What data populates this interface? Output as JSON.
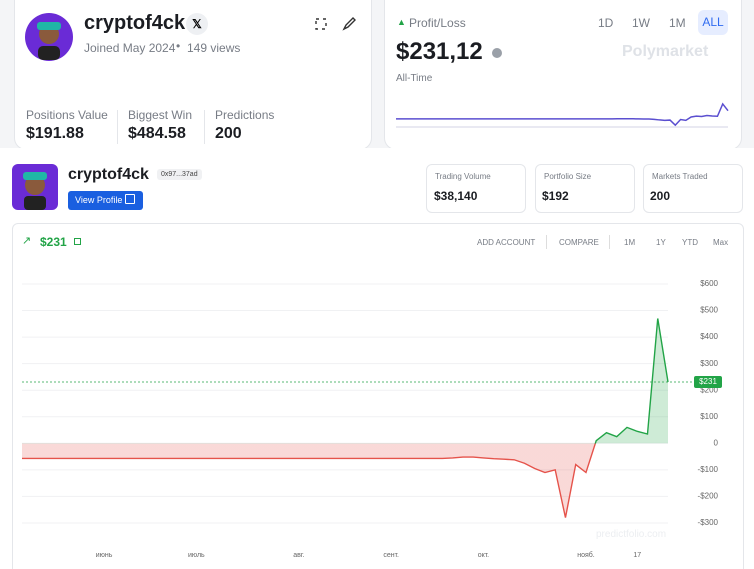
{
  "profile": {
    "username": "cryptof4ck",
    "joined": "Joined May 2024",
    "views": "149 views",
    "stats": [
      {
        "label": "Positions Value",
        "value": "$191.88"
      },
      {
        "label": "Biggest Win",
        "value": "$484.58"
      },
      {
        "label": "Predictions",
        "value": "200"
      }
    ]
  },
  "pnl": {
    "label": "Profit/Loss",
    "ranges": [
      "1D",
      "1W",
      "1M",
      "ALL"
    ],
    "value": "$231,12",
    "period": "All-Time",
    "brand": "Polymarket"
  },
  "tracker": {
    "username": "cryptof4ck",
    "address": "0x97...37ad",
    "button": "View Profile",
    "stats": [
      {
        "label": "Trading Volume",
        "value": "$38,140"
      },
      {
        "label": "Portfolio Size",
        "value": "$192"
      },
      {
        "label": "Markets Traded",
        "value": "200"
      }
    ],
    "pnl": "$231",
    "actions": [
      "ADD ACCOUNT",
      "COMPARE"
    ],
    "ranges": [
      "1M",
      "1Y",
      "YTD",
      "Max"
    ],
    "watermark": "predictfolio.com"
  },
  "chart_data": {
    "type": "line",
    "categories": [
      null,
      null,
      null,
      null,
      null,
      null,
      null,
      null,
      "июнь",
      null,
      null,
      null,
      null,
      null,
      null,
      null,
      null,
      "июль",
      null,
      null,
      null,
      null,
      null,
      null,
      null,
      null,
      null,
      "авг.",
      null,
      null,
      null,
      null,
      null,
      null,
      null,
      null,
      "сент.",
      null,
      null,
      null,
      null,
      null,
      null,
      null,
      null,
      "окт.",
      null,
      null,
      null,
      null,
      null,
      null,
      null,
      null,
      null,
      "нояб.",
      null,
      null,
      null,
      null,
      "17",
      null,
      null,
      null
    ],
    "values": [
      -57,
      -57,
      -57,
      -57,
      -57,
      -57,
      -57,
      -57,
      -57,
      -57,
      -57,
      -57,
      -57,
      -57,
      -57,
      -57,
      -57,
      -57,
      -57,
      -57,
      -57,
      -57,
      -57,
      -57,
      -57,
      -57,
      -57,
      -57,
      -57,
      -57,
      -57,
      -57,
      -57,
      -57,
      -57,
      -57,
      -57,
      -57,
      -57,
      -57,
      -57,
      -57,
      -55,
      -52,
      -52,
      -55,
      -58,
      -60,
      -62,
      -75,
      -95,
      -110,
      -100,
      -280,
      -80,
      -110,
      10,
      40,
      25,
      60,
      45,
      35,
      470,
      231
    ],
    "colors": {
      "positive": "#22a447",
      "negative": "#e5534b",
      "spark": "#5b4fd0"
    },
    "current_value": 231,
    "current_label": "$231",
    "ylim": [
      -380,
      680
    ],
    "yticks": [
      {
        "value": -300,
        "label": "-$300"
      },
      {
        "value": -200,
        "label": "-$200"
      },
      {
        "value": -100,
        "label": "-$100"
      },
      0,
      {
        "value": 100,
        "label": "$100"
      },
      {
        "value": 200,
        "label": "$200"
      },
      {
        "value": 300,
        "label": "$300"
      },
      {
        "value": 400,
        "label": "$400"
      },
      {
        "value": 500,
        "label": "$500"
      },
      {
        "value": 600,
        "label": "$600"
      }
    ],
    "grid": true
  }
}
